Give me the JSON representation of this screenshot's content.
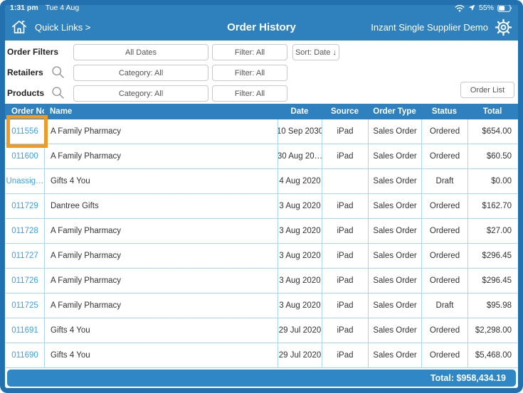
{
  "status_bar": {
    "time": "1:31 pm",
    "date": "Tue 4 Aug",
    "battery_percent": "55%"
  },
  "nav": {
    "quick_links_label": "Quick Links >",
    "title": "Order History",
    "account_label": "Inzant Single Supplier Demo"
  },
  "filters": {
    "row1": {
      "label": "Order Filters",
      "date_button": "All Dates",
      "filter_button": "Filter: All",
      "sort_button": "Sort: Date ↓"
    },
    "row2": {
      "label": "Retailers",
      "category_button": "Category: All",
      "filter_button": "Filter: All"
    },
    "row3": {
      "label": "Products",
      "category_button": "Category: All",
      "filter_button": "Filter: All"
    },
    "order_list_button": "Order List"
  },
  "table": {
    "columns": [
      "Order No",
      "Name",
      "Date",
      "Source",
      "Order Type",
      "Status",
      "Total"
    ],
    "column_keys": [
      "order-no",
      "name",
      "date",
      "source",
      "order-type",
      "status",
      "total"
    ],
    "rows": [
      [
        "011556",
        "A Family Pharmacy",
        "10 Sep 2030",
        "iPad",
        "Sales Order",
        "Ordered",
        "$654.00"
      ],
      [
        "011600",
        "A Family Pharmacy",
        "30 Aug 20…",
        "iPad",
        "Sales Order",
        "Ordered",
        "$60.50"
      ],
      [
        "Unassig…",
        "Gifts 4 You",
        "4 Aug 2020",
        "",
        "Sales Order",
        "Draft",
        "$0.00"
      ],
      [
        "011729",
        "Dantree Gifts",
        "3 Aug 2020",
        "iPad",
        "Sales Order",
        "Ordered",
        "$162.70"
      ],
      [
        "011728",
        "A Family Pharmacy",
        "3 Aug 2020",
        "iPad",
        "Sales Order",
        "Ordered",
        "$27.00"
      ],
      [
        "011727",
        "A Family Pharmacy",
        "3 Aug 2020",
        "iPad",
        "Sales Order",
        "Ordered",
        "$296.45"
      ],
      [
        "011726",
        "A Family Pharmacy",
        "3 Aug 2020",
        "iPad",
        "Sales Order",
        "Ordered",
        "$296.45"
      ],
      [
        "011725",
        "A Family Pharmacy",
        "3 Aug 2020",
        "iPad",
        "Sales Order",
        "Draft",
        "$95.98"
      ],
      [
        "011691",
        "Gifts 4 You",
        "29 Jul 2020",
        "iPad",
        "Sales Order",
        "Ordered",
        "$2,298.00"
      ],
      [
        "011690",
        "Gifts 4 You",
        "29 Jul 2020",
        "iPad",
        "Sales Order",
        "Ordered",
        "$5,468.00"
      ]
    ]
  },
  "footer": {
    "total_label": "Total: $958,434.19"
  },
  "colors": {
    "frame": "#2271AE",
    "header": "#2E81BD",
    "table_header": "#2E81BE",
    "footer_bar": "#2F87C5",
    "link": "#3E9FE4",
    "row_divider": "#ABD5F0",
    "highlight": "#EC9B28"
  }
}
